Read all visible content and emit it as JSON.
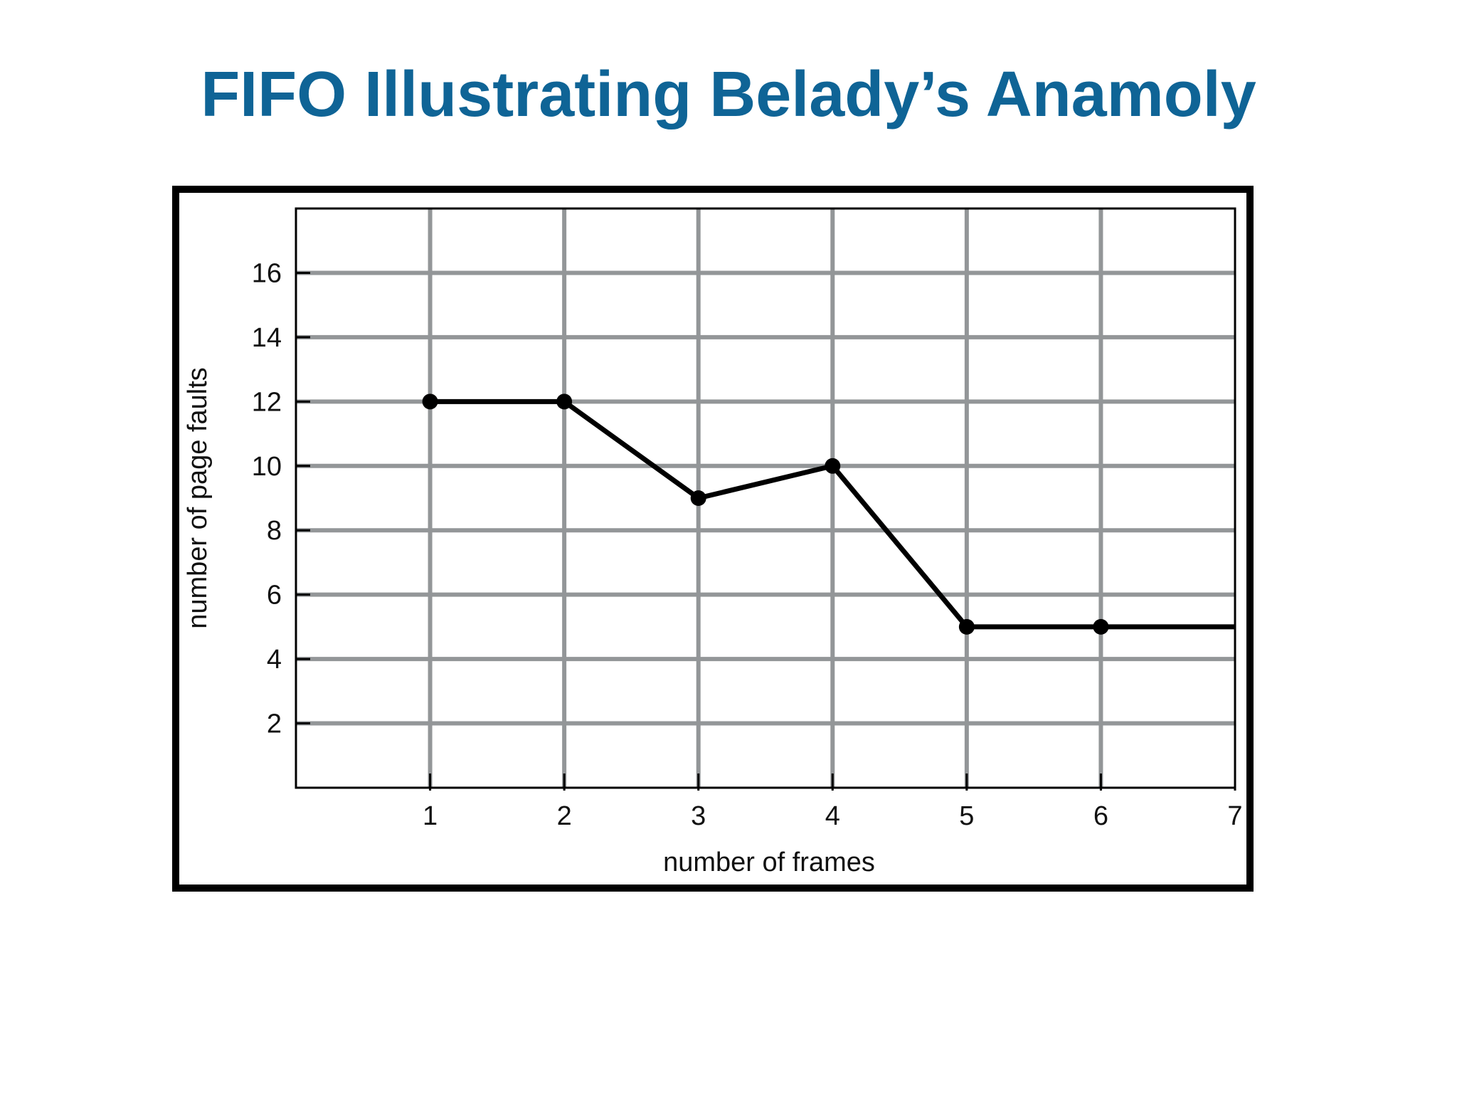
{
  "slide": {
    "title": "FIFO Illustrating Belady’s Anamoly"
  },
  "colors": {
    "title": "#0f6496",
    "frame": "#000000",
    "grid": "#939698",
    "line": "#000000",
    "axis": "#000000",
    "background": "#ffffff"
  },
  "chart_data": {
    "type": "line",
    "xlabel": "number of frames",
    "ylabel": "number of page faults",
    "x_ticks": [
      1,
      2,
      3,
      4,
      5,
      6,
      7
    ],
    "y_ticks": [
      2,
      4,
      6,
      8,
      10,
      12,
      14,
      16
    ],
    "xlim": [
      0,
      7
    ],
    "ylim": [
      0,
      18
    ],
    "grid": true,
    "legend": "none",
    "series": [
      {
        "x": [
          1,
          2,
          3,
          4,
          5,
          6,
          7
        ],
        "y": [
          12,
          12,
          9,
          10,
          5,
          5,
          5
        ],
        "markers": [
          true,
          true,
          true,
          true,
          true,
          true,
          false
        ]
      }
    ]
  }
}
